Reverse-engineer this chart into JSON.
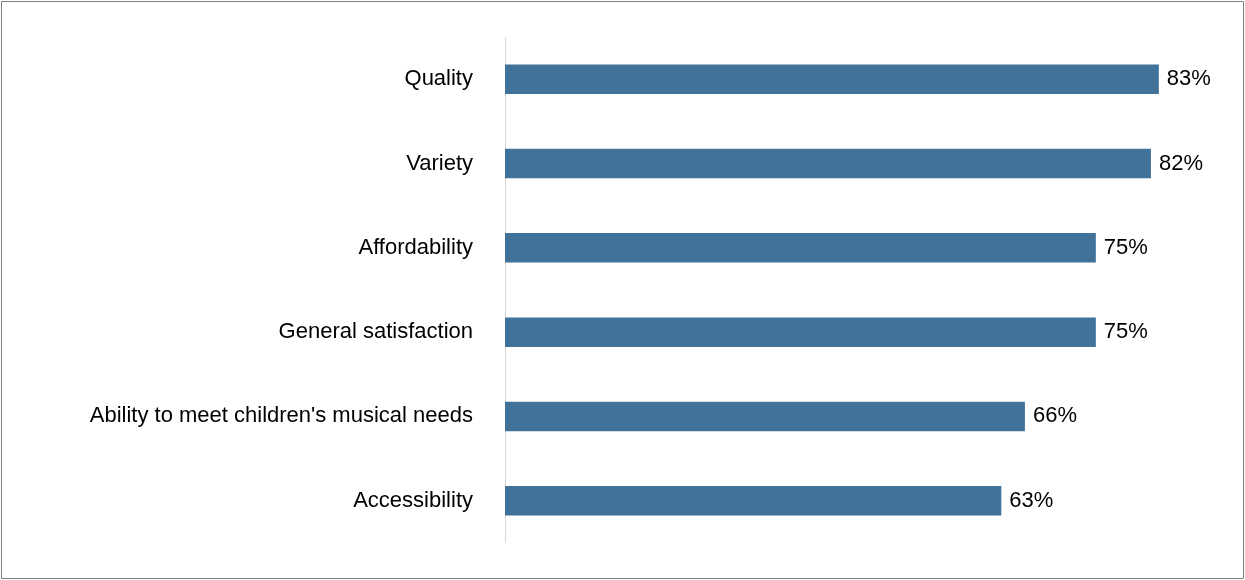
{
  "chart_data": {
    "type": "bar",
    "orientation": "horizontal",
    "categories": [
      "Quality",
      "Variety",
      "Affordability",
      "General satisfaction",
      "Ability to meet children's musical needs",
      "Accessibility"
    ],
    "values": [
      83,
      82,
      75,
      75,
      66,
      63
    ],
    "value_labels": [
      "83%",
      "82%",
      "75%",
      "75%",
      "66%",
      "63%"
    ],
    "color": "#41739a",
    "legend": false
  }
}
